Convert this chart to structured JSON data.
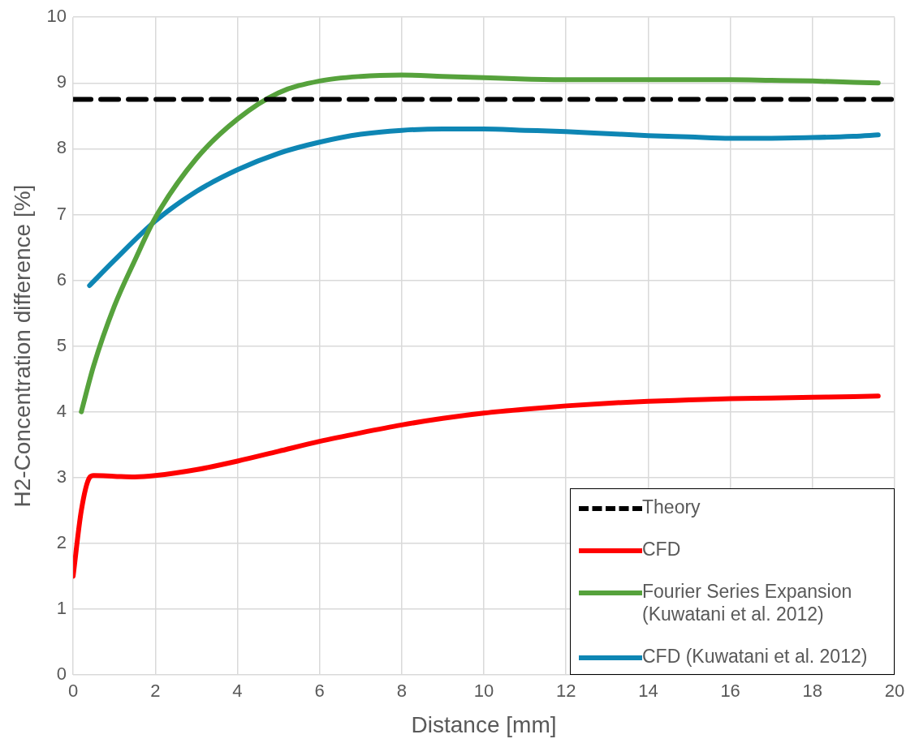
{
  "chart_data": {
    "type": "line",
    "xlabel": "Distance [mm]",
    "ylabel": "H2-Concentration difference [%]",
    "xlim": [
      0,
      20
    ],
    "xticks": [
      0,
      2,
      4,
      6,
      8,
      10,
      12,
      14,
      16,
      18,
      20
    ],
    "ylim": [
      0,
      10
    ],
    "yticks": [
      0,
      1,
      2,
      3,
      4,
      5,
      6,
      7,
      8,
      9,
      10
    ],
    "grid": true,
    "legend": "bottom right",
    "marker": "none",
    "series": [
      {
        "name": "Theory",
        "color": "#000000",
        "line_style": "dashed",
        "x": [
          0,
          20
        ],
        "values": [
          8.75,
          8.75
        ]
      },
      {
        "name": "CFD",
        "color": "#ff0000",
        "line_style": "solid",
        "x": [
          0,
          0.2,
          0.4,
          0.5,
          1,
          1.5,
          2,
          3,
          4,
          5,
          6,
          7,
          8,
          9,
          10,
          11,
          12,
          13,
          14,
          15,
          16,
          17,
          18,
          19,
          19.6
        ],
        "values": [
          1.5,
          2.5,
          3.0,
          3.03,
          3.02,
          3.01,
          3.03,
          3.12,
          3.25,
          3.4,
          3.55,
          3.68,
          3.8,
          3.9,
          3.98,
          4.04,
          4.09,
          4.13,
          4.16,
          4.18,
          4.2,
          4.21,
          4.22,
          4.23,
          4.24
        ]
      },
      {
        "name": "Fourier Series Expansion (Kuwatani et al. 2012)",
        "color": "#56a23c",
        "line_style": "solid",
        "x": [
          0.2,
          0.5,
          1,
          1.5,
          2,
          3,
          4,
          5,
          6,
          7,
          8,
          9,
          10,
          11,
          12,
          13,
          14,
          15,
          16,
          17,
          18,
          19,
          19.6
        ],
        "values": [
          4.0,
          4.7,
          5.6,
          6.3,
          6.95,
          7.85,
          8.45,
          8.85,
          9.03,
          9.1,
          9.12,
          9.1,
          9.08,
          9.06,
          9.05,
          9.05,
          9.05,
          9.05,
          9.05,
          9.04,
          9.03,
          9.01,
          9.0
        ]
      },
      {
        "name": "CFD (Kuwatani et al. 2012)",
        "color": "#0e86b4",
        "line_style": "solid",
        "x": [
          0.4,
          1,
          2,
          3,
          4,
          5,
          6,
          7,
          8,
          9,
          10,
          11,
          12,
          13,
          14,
          15,
          16,
          17,
          18,
          19,
          19.6
        ],
        "values": [
          5.92,
          6.3,
          6.9,
          7.35,
          7.68,
          7.93,
          8.1,
          8.22,
          8.28,
          8.3,
          8.3,
          8.28,
          8.26,
          8.23,
          8.2,
          8.18,
          8.16,
          8.16,
          8.17,
          8.19,
          8.21
        ]
      }
    ]
  }
}
